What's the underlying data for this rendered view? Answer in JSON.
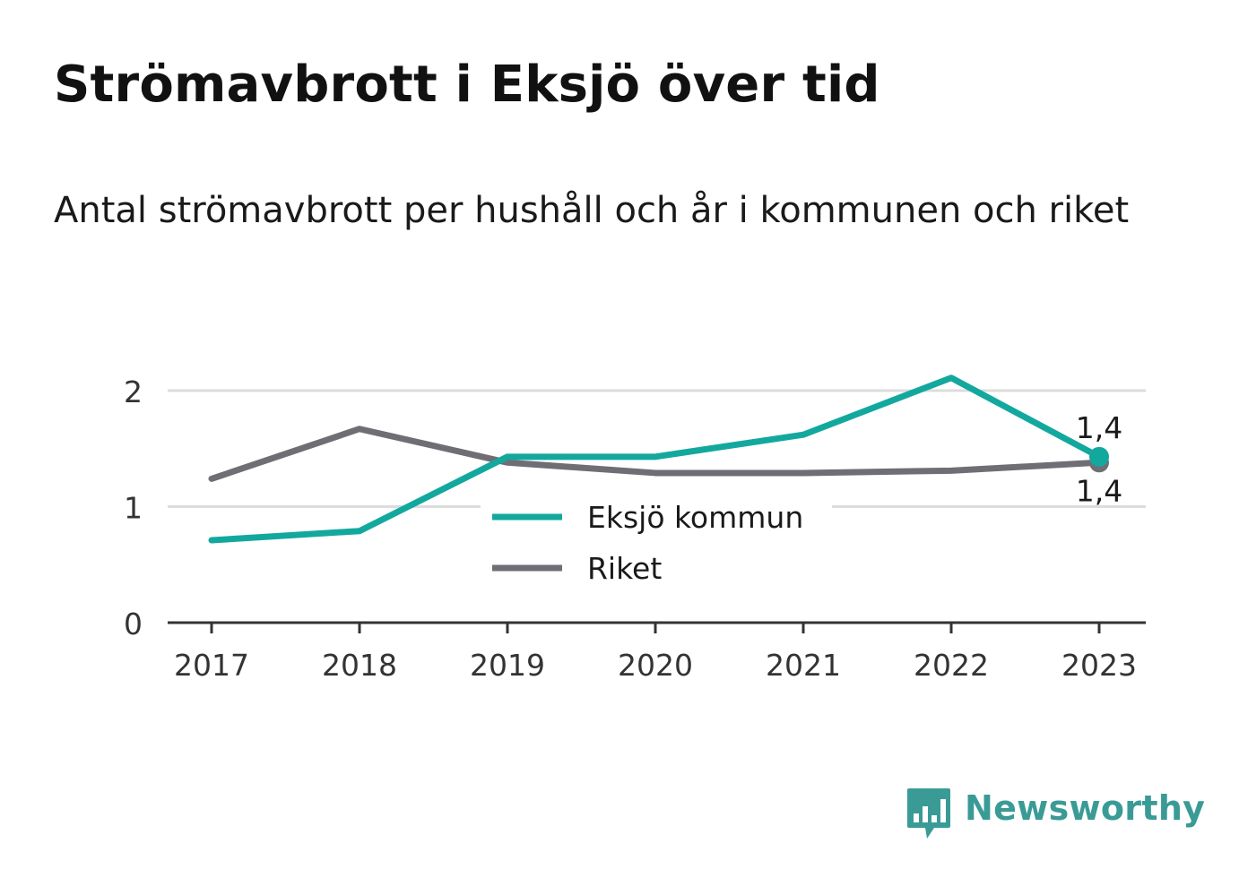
{
  "header": {
    "title": "Strömavbrott i Eksjö över tid",
    "subtitle": "Antal strömavbrott per hushåll och år i kommunen och riket"
  },
  "brand": {
    "name": "Newsworthy",
    "icon": "newsworthy-bar-chart-icon",
    "color": "#3a9b96"
  },
  "chart_data": {
    "type": "line",
    "title": "",
    "xlabel": "",
    "ylabel": "",
    "x": [
      "2017",
      "2018",
      "2019",
      "2020",
      "2021",
      "2022",
      "2023"
    ],
    "ylim": [
      0,
      2.3
    ],
    "yticks": [
      0,
      1,
      2
    ],
    "ytick_labels": [
      "0",
      "1",
      "2"
    ],
    "grid": true,
    "legend_position": "center",
    "series": [
      {
        "name": "Eksjö kommun",
        "color": "#13a89e",
        "values": [
          0.71,
          0.79,
          1.43,
          1.43,
          1.62,
          2.11,
          1.43
        ],
        "end_label": "1,4"
      },
      {
        "name": "Riket",
        "color": "#6f6e75",
        "values": [
          1.24,
          1.67,
          1.38,
          1.29,
          1.29,
          1.31,
          1.38
        ],
        "end_label": "1,4"
      }
    ]
  }
}
